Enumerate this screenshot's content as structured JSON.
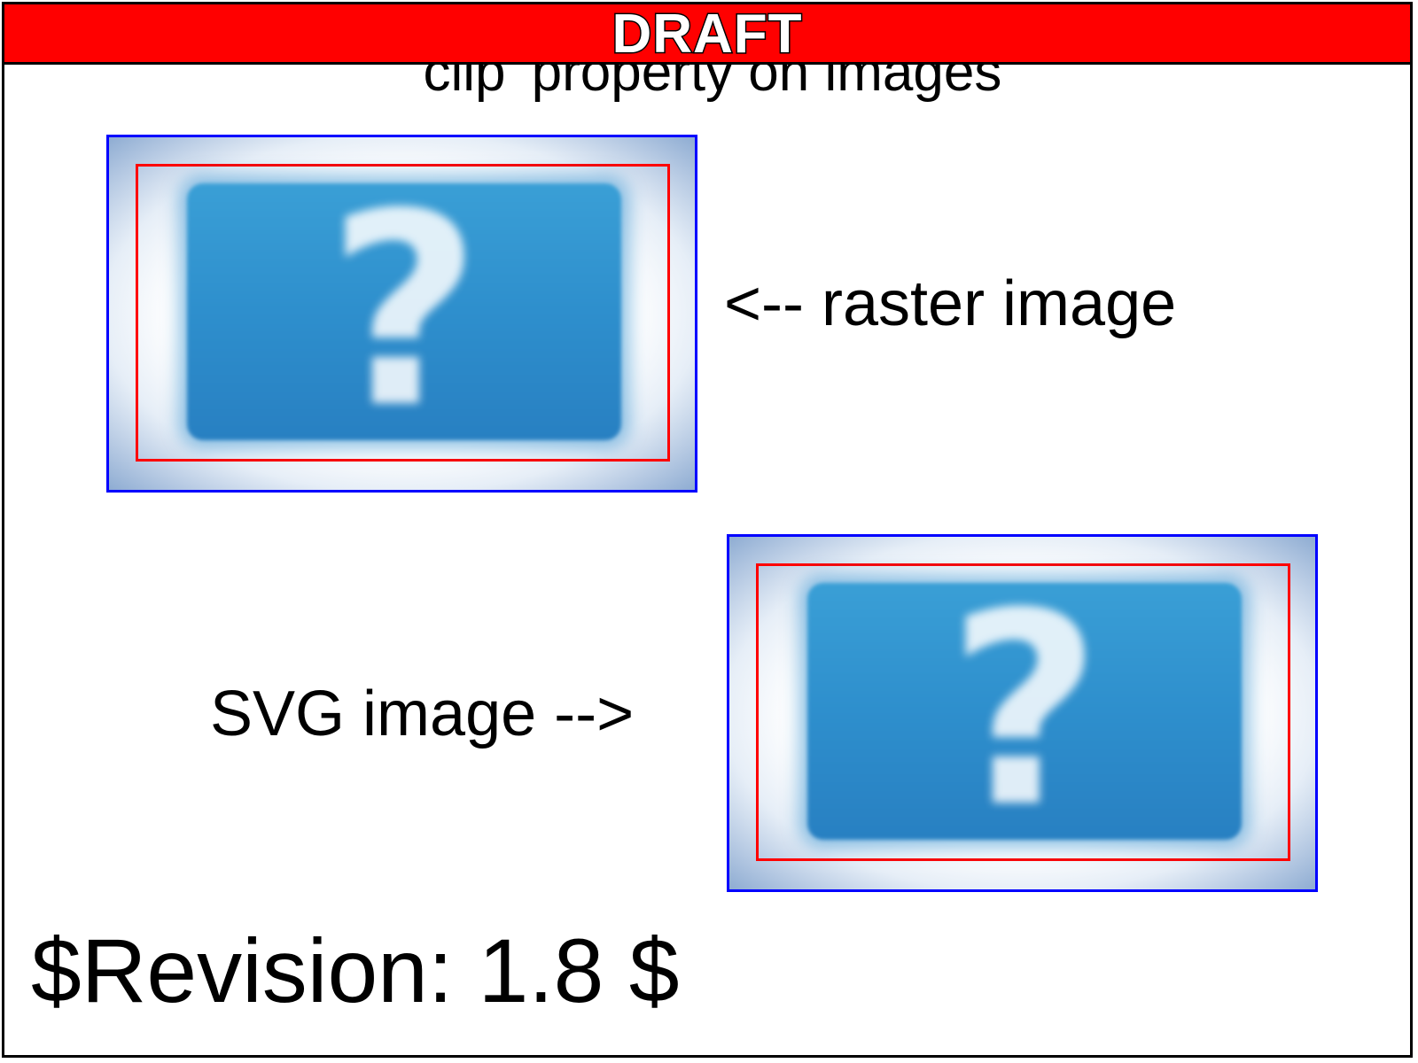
{
  "banner": {
    "text": "DRAFT"
  },
  "title": "'clip' property on images",
  "labels": {
    "raster": "<-- raster image",
    "svg": "SVG image -->"
  },
  "image_glyph": "?",
  "footer": {
    "revision": "$Revision: 1.8 $"
  },
  "colors": {
    "banner": "#ff0000",
    "image_border": "#0000ff",
    "clip_border": "#ff0000",
    "panel_blue": "#2e8fcd"
  },
  "icons": [
    "question-mark-icon"
  ]
}
